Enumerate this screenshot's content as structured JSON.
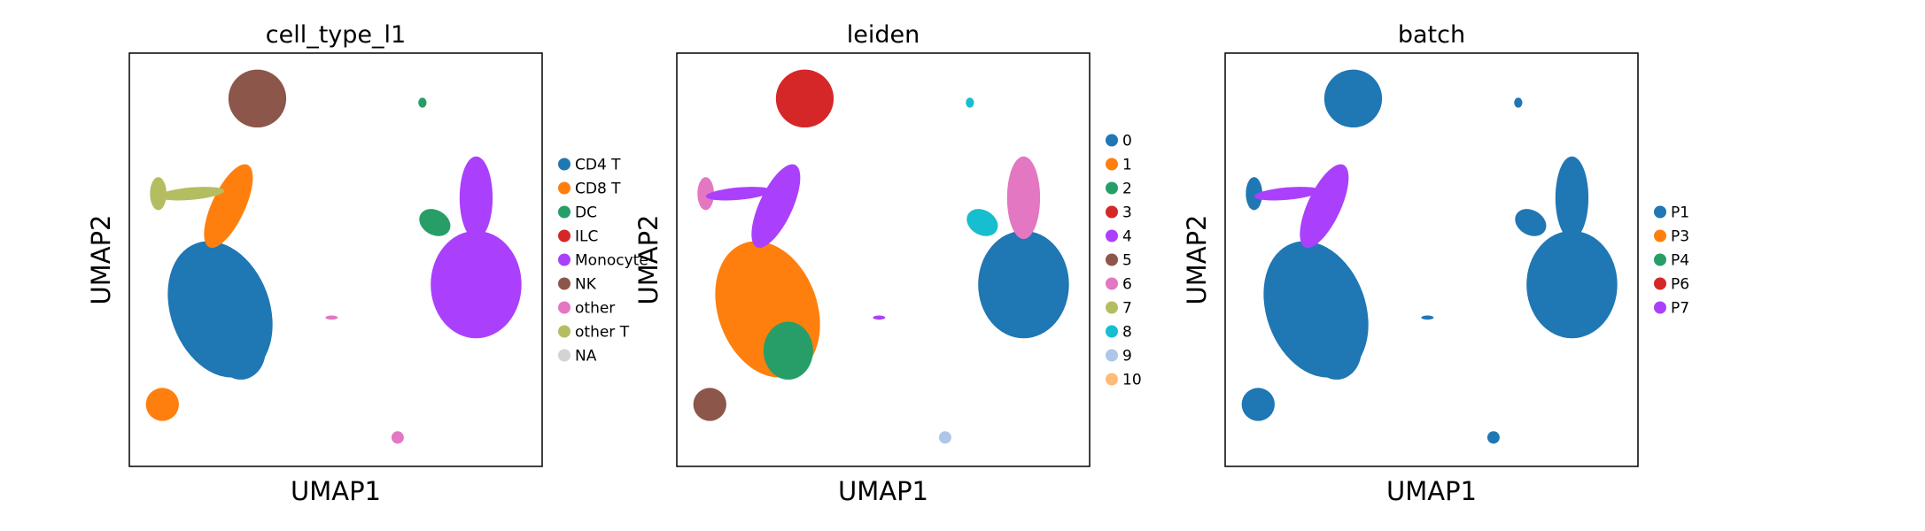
{
  "chart_data": [
    {
      "type": "scatter",
      "title": "cell_type_l1",
      "xlabel": "UMAP1",
      "ylabel": "UMAP2",
      "ticks": "none",
      "legend": {
        "placement": "right",
        "entries": [
          {
            "label": "CD4 T",
            "color": "#1f77b4"
          },
          {
            "label": "CD8 T",
            "color": "#ff7f0e"
          },
          {
            "label": "DC",
            "color": "#279e68"
          },
          {
            "label": "ILC",
            "color": "#d62728"
          },
          {
            "label": "Monocyte",
            "color": "#aa40fc"
          },
          {
            "label": "NK",
            "color": "#8c564b"
          },
          {
            "label": "other",
            "color": "#e377c2"
          },
          {
            "label": "other T",
            "color": "#b5bd61"
          },
          {
            "label": "NA",
            "color": "#d3d3d3"
          }
        ]
      }
    },
    {
      "type": "scatter",
      "title": "leiden",
      "xlabel": "UMAP1",
      "ylabel": "UMAP2",
      "ticks": "none",
      "legend": {
        "placement": "right",
        "entries": [
          {
            "label": "0",
            "color": "#1f77b4"
          },
          {
            "label": "1",
            "color": "#ff7f0e"
          },
          {
            "label": "2",
            "color": "#279e68"
          },
          {
            "label": "3",
            "color": "#d62728"
          },
          {
            "label": "4",
            "color": "#aa40fc"
          },
          {
            "label": "5",
            "color": "#8c564b"
          },
          {
            "label": "6",
            "color": "#e377c2"
          },
          {
            "label": "7",
            "color": "#b5bd61"
          },
          {
            "label": "8",
            "color": "#17becf"
          },
          {
            "label": "9",
            "color": "#aec7e8"
          },
          {
            "label": "10",
            "color": "#ffbb78"
          }
        ]
      }
    },
    {
      "type": "scatter",
      "title": "batch",
      "xlabel": "UMAP1",
      "ylabel": "UMAP2",
      "ticks": "none",
      "legend": {
        "placement": "right",
        "entries": [
          {
            "label": "P1",
            "color": "#1f77b4"
          },
          {
            "label": "P3",
            "color": "#ff7f0e"
          },
          {
            "label": "P4",
            "color": "#279e68"
          },
          {
            "label": "P6",
            "color": "#d62728"
          },
          {
            "label": "P7",
            "color": "#aa40fc"
          }
        ]
      }
    }
  ]
}
